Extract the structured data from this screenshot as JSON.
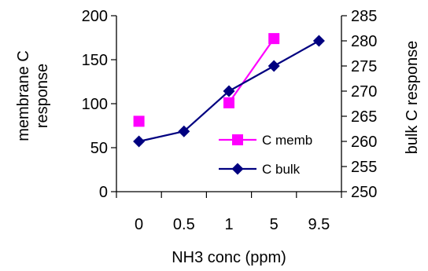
{
  "chart_data": {
    "type": "line",
    "categories": [
      "0",
      "0.5",
      "1",
      "5",
      "9.5"
    ],
    "xlabel": "NH3 conc (ppm)",
    "ylabel_left": "membrane C response",
    "ylabel_right": "bulk C response",
    "ylim_left": [
      0,
      200
    ],
    "yticks_left": [
      0,
      50,
      100,
      150,
      200
    ],
    "ylim_right": [
      250,
      285
    ],
    "yticks_right": [
      250,
      255,
      260,
      265,
      270,
      275,
      280,
      285
    ],
    "grid": false,
    "legend_position": "right, inside plot",
    "series": [
      {
        "name": "C memb",
        "axis": "left",
        "color": "#ff00ff",
        "marker": "square",
        "values": [
          80,
          null,
          101,
          174,
          null
        ]
      },
      {
        "name": "C bulk",
        "axis": "right",
        "color": "#000080",
        "marker": "diamond",
        "values": [
          260,
          262,
          270,
          275,
          280
        ]
      }
    ]
  }
}
